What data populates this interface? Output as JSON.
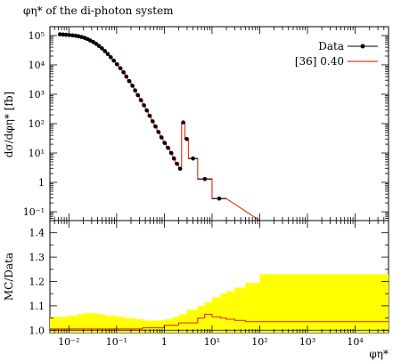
{
  "chart_data": {
    "type": "line",
    "title": "φη* of the di-photon system",
    "xlabel": "φη*",
    "ylabel": "dσ/dφη* [fb]",
    "ratio_ylabel": "MC/Data",
    "xscale": "log",
    "yscale": "log",
    "xlim": [
      0.004,
      50000
    ],
    "ylim": [
      0.05,
      200000
    ],
    "ratio_ylim": [
      0.99,
      1.45
    ],
    "x_tick_labels": [
      "10⁻²",
      "10⁻¹",
      "1",
      "10¹",
      "10²",
      "10³",
      "10⁴"
    ],
    "y_tick_labels": [
      "10⁵",
      "10⁴",
      "10³",
      "10²",
      "10¹",
      "1",
      "10⁻¹"
    ],
    "ratio_tick_labels": [
      "1.0",
      "1.1",
      "1.2",
      "1.3",
      "1.4"
    ],
    "bin_edges": [
      0.006,
      0.007,
      0.0081,
      0.0094,
      0.011,
      0.013,
      0.015,
      0.017,
      0.02,
      0.023,
      0.026,
      0.03,
      0.035,
      0.04,
      0.046,
      0.053,
      0.061,
      0.07,
      0.081,
      0.094,
      0.11,
      0.13,
      0.15,
      0.17,
      0.2,
      0.23,
      0.26,
      0.3,
      0.35,
      0.4,
      0.46,
      0.53,
      0.61,
      0.7,
      0.81,
      0.94,
      1.1,
      1.3,
      1.5,
      1.7,
      2.0,
      2.3,
      2.7,
      3.2,
      5,
      10,
      20,
      50,
      100
    ],
    "series": [
      {
        "name": "Data",
        "style": "points",
        "color": "#000000",
        "values": [
          110000,
          108000,
          106000,
          104000,
          101000,
          98000,
          94000,
          89000,
          83000,
          76000,
          68000,
          60000,
          52000,
          44000,
          36500,
          29500,
          23500,
          18300,
          14000,
          10500,
          7700,
          5600,
          4000,
          2800,
          1950,
          1350,
          930,
          630,
          420,
          280,
          185,
          120,
          80,
          52,
          34,
          22,
          15,
          10,
          6.5,
          4.3,
          2.9,
          110,
          30,
          6.5,
          1.3,
          0.28
        ]
      },
      {
        "name": "[36] 0.40",
        "style": "histogram",
        "color": "#e8391a",
        "values": [
          110000,
          108000,
          106000,
          104000,
          101000,
          98000,
          94000,
          89000,
          83000,
          76000,
          68000,
          60000,
          52000,
          44000,
          36500,
          29500,
          23500,
          18300,
          14000,
          10500,
          7700,
          5600,
          4000,
          2800,
          1950,
          1350,
          930,
          630,
          420,
          280,
          185,
          120,
          80,
          52,
          34,
          22,
          15,
          10,
          6.5,
          4.3,
          2.9,
          110,
          30,
          6.5,
          1.3,
          0.28
        ]
      }
    ],
    "ratio": {
      "line_edges": [
        0.004,
        0.15,
        0.35,
        1.0,
        2.0,
        5,
        7,
        10,
        15,
        20,
        30,
        50,
        100,
        50000
      ],
      "line_values": [
        1.005,
        1.005,
        1.01,
        1.02,
        1.03,
        1.05,
        1.065,
        1.055,
        1.05,
        1.045,
        1.04,
        1.035,
        1.035
      ],
      "band_edges": [
        0.004,
        0.006,
        0.01,
        0.015,
        0.02,
        0.03,
        0.04,
        0.06,
        0.1,
        0.15,
        0.25,
        0.4,
        0.7,
        1.0,
        1.5,
        2.0,
        3.0,
        5,
        7,
        10,
        15,
        20,
        30,
        50,
        100,
        50000
      ],
      "band_upper": [
        1.055,
        1.055,
        1.06,
        1.065,
        1.07,
        1.07,
        1.065,
        1.06,
        1.055,
        1.05,
        1.045,
        1.04,
        1.04,
        1.045,
        1.055,
        1.065,
        1.085,
        1.1,
        1.115,
        1.135,
        1.15,
        1.16,
        1.175,
        1.195,
        1.23
      ],
      "band_color": "#ffff00",
      "line_color": "#e8391a"
    },
    "legend_position": "top-right"
  }
}
